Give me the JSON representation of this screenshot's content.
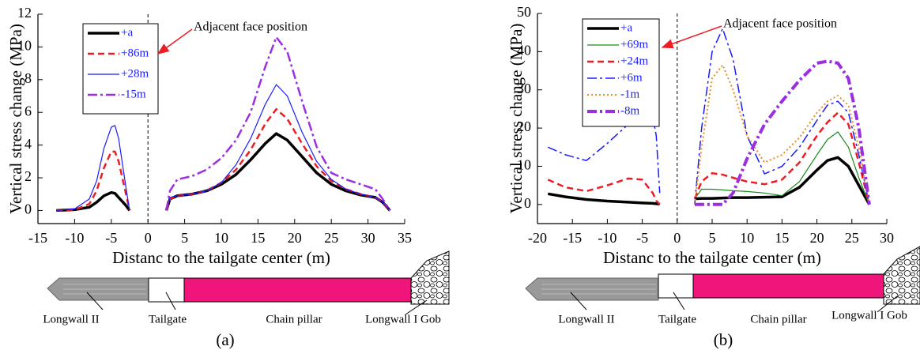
{
  "chart_data": [
    {
      "type": "line",
      "x_label": "Distanc to the tailgate center (m)",
      "y_label": "Vertical stress change (MPa)",
      "annotation": "Adjacent face position",
      "legend": "upper left",
      "xlim": [
        -15,
        35
      ],
      "xticks": [
        -15,
        -10,
        -5,
        0,
        5,
        10,
        15,
        20,
        25,
        30,
        35
      ],
      "ylim": [
        -0.8,
        12
      ],
      "yticks": [
        0,
        2,
        4,
        6,
        8,
        10,
        12
      ],
      "x": [
        -12.5,
        -10,
        -8,
        -7,
        -6,
        -5,
        -4.5,
        -4,
        -3,
        -2.5,
        0,
        2.5,
        3,
        4,
        6,
        8,
        10,
        12,
        14,
        16,
        17.5,
        19,
        21,
        23,
        25,
        27,
        29,
        31,
        32,
        33
      ],
      "series": [
        {
          "name": "+a",
          "color": "#000000",
          "style": "solid",
          "width": 3.5,
          "values": [
            0,
            0.05,
            0.2,
            0.5,
            0.9,
            1.1,
            1.05,
            0.8,
            0.3,
            0,
            null,
            0,
            0.7,
            0.9,
            1.0,
            1.2,
            1.6,
            2.2,
            3.1,
            4.1,
            4.7,
            4.3,
            3.3,
            2.3,
            1.6,
            1.2,
            0.95,
            0.8,
            0.5,
            0
          ]
        },
        {
          "name": "+86m",
          "color": "#ee1c24",
          "style": "dash",
          "width": 2.5,
          "values": [
            0,
            0.05,
            0.4,
            1.2,
            2.6,
            3.6,
            3.6,
            3.0,
            1.0,
            0,
            null,
            0,
            0.7,
            0.9,
            1.0,
            1.2,
            1.7,
            2.5,
            3.7,
            5.3,
            6.2,
            5.6,
            4.1,
            2.7,
            1.8,
            1.3,
            1.0,
            0.8,
            0.5,
            0
          ]
        },
        {
          "name": "+28m",
          "color": "#1a1aff",
          "style": "solid",
          "width": 1.2,
          "values": [
            0,
            0.1,
            0.7,
            1.8,
            3.8,
            5.1,
            5.2,
            4.4,
            1.4,
            0,
            null,
            0,
            0.8,
            0.9,
            1.0,
            1.2,
            1.7,
            2.8,
            4.4,
            6.5,
            7.7,
            7.0,
            4.8,
            3.0,
            1.9,
            1.3,
            1.0,
            0.8,
            0.5,
            0
          ]
        },
        {
          "name": "-15m",
          "color": "#9b2fe0",
          "style": "dashdot",
          "width": 2.5,
          "values": [
            null,
            null,
            null,
            null,
            null,
            null,
            null,
            null,
            null,
            null,
            null,
            0,
            1.2,
            1.9,
            2.1,
            2.5,
            3.2,
            4.3,
            6.0,
            8.8,
            10.6,
            9.7,
            6.7,
            3.9,
            2.3,
            1.9,
            1.6,
            1.3,
            0.7,
            0
          ]
        }
      ]
    },
    {
      "type": "line",
      "x_label": "Distanc to the tailgate center (m)",
      "y_label": "Vertical stress change (MPa)",
      "annotation": "Adjacent face position",
      "legend": "upper left",
      "xlim": [
        -20,
        30
      ],
      "xticks": [
        -20,
        -15,
        -10,
        -5,
        0,
        5,
        10,
        15,
        20,
        25,
        30
      ],
      "ylim": [
        -5,
        50
      ],
      "yticks": [
        0,
        10,
        20,
        30,
        40,
        50
      ],
      "x": [
        -18.5,
        -16,
        -13,
        -10,
        -7,
        -5,
        -3.5,
        -3,
        -2.5,
        0,
        2.5,
        3.5,
        5,
        6.5,
        8,
        10,
        12.5,
        15,
        17.5,
        20,
        21.5,
        23,
        24.5,
        26,
        27.5
      ],
      "series": [
        {
          "name": "+a",
          "color": "#000000",
          "style": "solid",
          "width": 3.5,
          "values": [
            2.8,
            2.0,
            1.3,
            0.9,
            0.6,
            0.4,
            0.3,
            0.2,
            0.1,
            null,
            1.5,
            1.6,
            1.6,
            1.7,
            1.8,
            1.8,
            1.9,
            2.0,
            4.5,
            9,
            11.5,
            12.3,
            10,
            5,
            0
          ]
        },
        {
          "name": "+69m",
          "color": "#1a8a1a",
          "style": "solid",
          "width": 1.2,
          "values": [
            null,
            null,
            null,
            null,
            null,
            null,
            null,
            null,
            null,
            null,
            1.5,
            4,
            4,
            3.8,
            3.6,
            3.4,
            3,
            2.3,
            6,
            13,
            17,
            19,
            15,
            7,
            0
          ]
        },
        {
          "name": "+24m",
          "color": "#ee1c24",
          "style": "dash",
          "width": 2.5,
          "values": [
            6.5,
            4.5,
            3.5,
            5,
            6.8,
            6.5,
            3,
            1,
            0,
            null,
            1.5,
            6,
            8.2,
            7.8,
            7,
            6,
            5.3,
            6.5,
            11,
            18,
            21.5,
            24,
            21,
            11,
            0
          ]
        },
        {
          "name": "+6m",
          "color": "#1a1aff",
          "style": "dashdot",
          "width": 1.5,
          "values": [
            15,
            13,
            11.5,
            16,
            21,
            25,
            23,
            18,
            3,
            null,
            0,
            20,
            40,
            46,
            38,
            18,
            8,
            10,
            15,
            22,
            26,
            27,
            24,
            13,
            0
          ]
        },
        {
          "name": "-1m",
          "color": "#f08c1a",
          "style": "dot",
          "width": 2,
          "values": [
            null,
            null,
            null,
            null,
            null,
            null,
            null,
            null,
            null,
            null,
            0,
            15,
            33,
            36.5,
            30,
            18,
            11,
            13,
            17.5,
            24,
            27,
            28.5,
            26,
            15,
            0
          ]
        },
        {
          "name": "-8m",
          "color": "#9b2fe0",
          "style": "dashdot",
          "width": 4,
          "values": [
            null,
            null,
            null,
            null,
            null,
            null,
            null,
            null,
            null,
            null,
            0,
            0,
            0,
            0,
            3,
            12,
            21,
            27,
            32.5,
            37,
            37.5,
            37,
            33,
            20,
            0
          ]
        }
      ]
    }
  ],
  "diagrams": [
    {
      "labels": [
        "Longwall II",
        "Tailgate",
        "Chain pillar",
        "Longwall I Gob"
      ],
      "caption": "(a)"
    },
    {
      "labels": [
        "Longwall II",
        "Tailgate",
        "Chain pillar",
        "Longwall I Gob"
      ],
      "caption": "(b)"
    }
  ]
}
